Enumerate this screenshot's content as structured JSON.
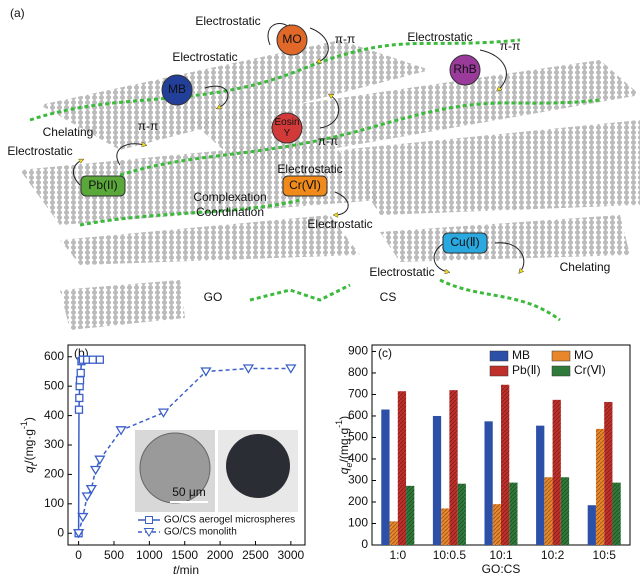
{
  "diagram": {
    "panel": "(a)",
    "labels": [
      "Electrostatic",
      "π-π",
      "Electrostatic",
      "Electrostatic",
      "π-π",
      "Chelating",
      "π-π",
      "Electrostatic",
      "π-π",
      "Electrostatic",
      "Complexation",
      "Coordination",
      "Electrostatic",
      "Electrostatic",
      "Chelating",
      "GO",
      "CS"
    ],
    "badges": [
      {
        "lines": [
          "MO"
        ],
        "color": "#e0692a"
      },
      {
        "lines": [
          "MB"
        ],
        "color": "#22409a"
      },
      {
        "lines": [
          "RhB"
        ],
        "color": "#9a3a9a"
      },
      {
        "lines": [
          "Eosin",
          "Y"
        ],
        "color": "#d23a3a"
      },
      {
        "lines": [
          "Pb(II)"
        ],
        "color": "#5aa83a"
      },
      {
        "lines": [
          "Cr(Ⅵ)"
        ],
        "color": "#f08a1a"
      },
      {
        "lines": [
          "Cu(Ⅱ)"
        ],
        "color": "#2aa8e0"
      }
    ]
  },
  "chart_data": [
    {
      "type": "line",
      "panel": "(b)",
      "xlabel": [
        "t",
        "/min"
      ],
      "ylabel": [
        "q",
        "t",
        "/(mg·g",
        "-1",
        ")"
      ],
      "xlim": [
        -150,
        3200
      ],
      "ylim": [
        -40,
        640
      ],
      "xticks": [
        0,
        500,
        1000,
        1500,
        2000,
        2500,
        3000
      ],
      "yticks": [
        0,
        100,
        200,
        300,
        400,
        500,
        600
      ],
      "inset_scale": "50 μm",
      "series": [
        {
          "name": "GO/CS aerogel microspheres",
          "color": "#3a5fc8",
          "marker": "square",
          "dash": false,
          "x": [
            0,
            5,
            10,
            15,
            20,
            30,
            40,
            60,
            120,
            200,
            300
          ],
          "values": [
            0,
            420,
            460,
            500,
            520,
            545,
            585,
            590,
            590,
            590,
            590
          ]
        },
        {
          "name": "GO/CS monolith",
          "color": "#3a5fc8",
          "marker": "triangle-down",
          "dash": true,
          "x": [
            0,
            60,
            120,
            180,
            240,
            300,
            600,
            1200,
            1800,
            2400,
            3000
          ],
          "values": [
            0,
            55,
            125,
            150,
            215,
            250,
            350,
            410,
            550,
            560,
            560
          ]
        }
      ]
    },
    {
      "type": "bar",
      "panel": "(c)",
      "xlabel": "GO:CS",
      "ylabel": [
        "q",
        "e",
        "/(mg·g",
        "-1",
        ")"
      ],
      "categories": [
        "1:0",
        "10:0.5",
        "10:1",
        "10:2",
        "10:5"
      ],
      "ylim": [
        0,
        930
      ],
      "yticks": [
        0,
        100,
        200,
        300,
        400,
        500,
        600,
        700,
        800,
        900
      ],
      "series": [
        {
          "name": "MB",
          "color": "#2c4fa8",
          "values": [
            630,
            600,
            575,
            555,
            185
          ]
        },
        {
          "name": "MO",
          "color": "#e8862a",
          "values": [
            110,
            170,
            190,
            315,
            540
          ]
        },
        {
          "name": "Pb(Ⅱ)",
          "color": "#c0302a",
          "values": [
            715,
            720,
            745,
            675,
            665
          ]
        },
        {
          "name": "Cr(Ⅵ)",
          "color": "#2f7a3a",
          "values": [
            275,
            285,
            290,
            315,
            290
          ]
        }
      ]
    }
  ]
}
